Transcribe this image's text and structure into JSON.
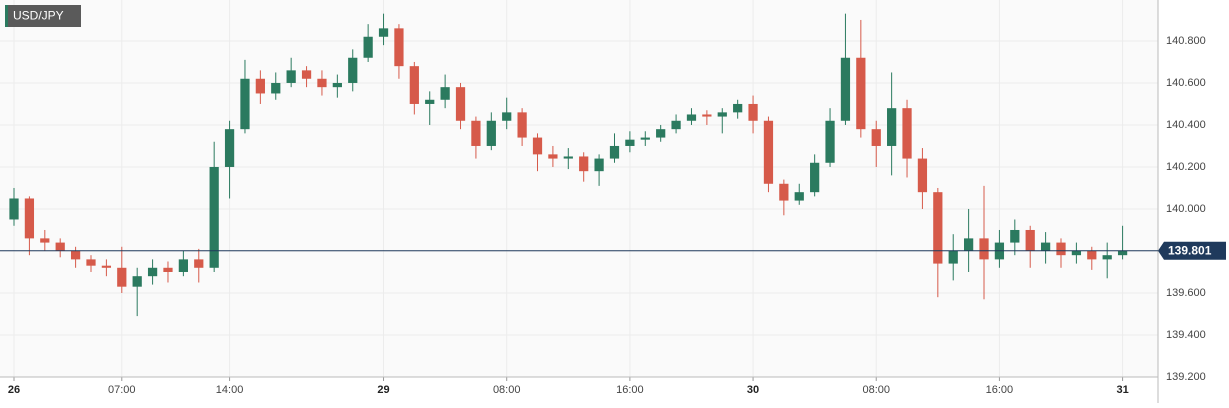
{
  "chart_data": {
    "type": "candlestick",
    "title": "USD/JPY",
    "x": [
      0,
      1,
      2,
      3,
      4,
      5,
      6,
      7,
      8,
      9,
      10,
      11,
      12,
      13,
      14,
      15,
      16,
      17,
      18,
      19,
      20,
      21,
      22,
      23,
      24,
      25,
      26,
      27,
      28,
      29,
      30,
      31,
      32,
      33,
      34,
      35,
      36,
      37,
      38,
      39,
      40,
      41,
      42,
      43,
      44,
      45,
      46,
      47,
      48,
      49,
      50,
      51,
      52,
      53,
      54,
      55,
      56,
      57,
      58,
      59,
      60,
      61,
      62,
      63,
      64,
      65,
      66,
      67,
      68,
      69,
      70,
      71,
      72
    ],
    "open": [
      139.95,
      140.05,
      139.86,
      139.84,
      139.8,
      139.76,
      139.73,
      139.72,
      139.63,
      139.68,
      139.72,
      139.7,
      139.76,
      139.72,
      140.2,
      140.38,
      140.62,
      140.55,
      140.6,
      140.66,
      140.62,
      140.58,
      140.6,
      140.72,
      140.82,
      140.86,
      140.68,
      140.5,
      140.52,
      140.58,
      140.42,
      140.3,
      140.42,
      140.46,
      140.34,
      140.26,
      140.24,
      140.25,
      140.18,
      140.24,
      140.3,
      140.33,
      140.34,
      140.38,
      140.42,
      140.45,
      140.44,
      140.46,
      140.5,
      140.42,
      140.12,
      140.04,
      140.08,
      140.22,
      140.42,
      140.72,
      140.38,
      140.3,
      140.48,
      140.24,
      140.08,
      139.74,
      139.8,
      139.86,
      139.76,
      139.84,
      139.9,
      139.8,
      139.84,
      139.78,
      139.8,
      139.76,
      139.78
    ],
    "high": [
      140.1,
      140.06,
      139.9,
      139.86,
      139.82,
      139.78,
      139.76,
      139.82,
      139.72,
      139.76,
      139.75,
      139.8,
      139.81,
      140.32,
      140.42,
      140.71,
      140.66,
      140.65,
      140.72,
      140.68,
      140.66,
      140.64,
      140.76,
      140.88,
      140.93,
      140.88,
      140.7,
      140.56,
      140.64,
      140.6,
      140.44,
      140.46,
      140.53,
      140.48,
      140.36,
      140.3,
      140.29,
      140.27,
      140.26,
      140.36,
      140.37,
      140.37,
      140.4,
      140.45,
      140.48,
      140.47,
      140.48,
      140.52,
      140.54,
      140.44,
      140.14,
      140.12,
      140.26,
      140.48,
      140.93,
      140.9,
      140.42,
      140.65,
      140.52,
      140.29,
      140.1,
      139.88,
      140.0,
      140.11,
      139.9,
      139.95,
      139.92,
      139.89,
      139.86,
      139.84,
      139.82,
      139.84,
      139.92
    ],
    "low": [
      139.92,
      139.78,
      139.8,
      139.77,
      139.72,
      139.7,
      139.68,
      139.6,
      139.49,
      139.64,
      139.65,
      139.68,
      139.65,
      139.7,
      140.05,
      140.36,
      140.5,
      140.52,
      140.58,
      140.58,
      140.54,
      140.53,
      140.56,
      140.7,
      140.78,
      140.62,
      140.45,
      140.4,
      140.48,
      140.38,
      140.24,
      140.28,
      140.38,
      140.3,
      140.18,
      140.2,
      140.19,
      140.13,
      140.11,
      140.22,
      140.27,
      140.3,
      140.32,
      140.36,
      140.4,
      140.4,
      140.36,
      140.43,
      140.36,
      140.08,
      139.97,
      140.02,
      140.06,
      140.2,
      140.4,
      140.34,
      140.2,
      140.16,
      140.15,
      140.0,
      139.58,
      139.66,
      139.7,
      139.57,
      139.72,
      139.78,
      139.72,
      139.74,
      139.72,
      139.74,
      139.71,
      139.67,
      139.76
    ],
    "close": [
      140.05,
      139.86,
      139.84,
      139.8,
      139.76,
      139.73,
      139.72,
      139.63,
      139.68,
      139.72,
      139.7,
      139.76,
      139.72,
      140.2,
      140.38,
      140.62,
      140.55,
      140.6,
      140.66,
      140.62,
      140.58,
      140.6,
      140.72,
      140.82,
      140.86,
      140.68,
      140.5,
      140.52,
      140.58,
      140.42,
      140.3,
      140.42,
      140.46,
      140.34,
      140.26,
      140.24,
      140.25,
      140.18,
      140.24,
      140.3,
      140.33,
      140.34,
      140.38,
      140.42,
      140.45,
      140.44,
      140.46,
      140.5,
      140.42,
      140.12,
      140.04,
      140.08,
      140.22,
      140.42,
      140.72,
      140.38,
      140.3,
      140.48,
      140.24,
      140.08,
      139.74,
      139.8,
      139.86,
      139.76,
      139.84,
      139.9,
      139.8,
      139.84,
      139.78,
      139.8,
      139.76,
      139.78,
      139.801
    ],
    "last_price": 139.801,
    "up_color": "#2b7a5f",
    "down_color": "#d65a4a",
    "last_color": "#1f3a5c",
    "xlim": [
      -0.91,
      74.3
    ],
    "xticks": [
      {
        "value": 0,
        "label": "26"
      },
      {
        "value": 7,
        "label": "07:00"
      },
      {
        "value": 14,
        "label": "14:00"
      },
      {
        "value": 24,
        "label": "29"
      },
      {
        "value": 32,
        "label": "08:00"
      },
      {
        "value": 40,
        "label": "16:00"
      },
      {
        "value": 48,
        "label": "30"
      },
      {
        "value": 56,
        "label": "08:00"
      },
      {
        "value": 64,
        "label": "16:00"
      },
      {
        "value": 72,
        "label": "31"
      }
    ],
    "ylim": [
      139.2,
      140.995
    ],
    "yticks": [
      {
        "value": 139.2,
        "label": "139.200"
      },
      {
        "value": 139.4,
        "label": "139.400"
      },
      {
        "value": 139.6,
        "label": "139.600"
      },
      {
        "value": 139.8,
        "label": "139.800"
      },
      {
        "value": 140.0,
        "label": "140.000"
      },
      {
        "value": 140.2,
        "label": "140.200"
      },
      {
        "value": 140.4,
        "label": "140.400"
      },
      {
        "value": 140.6,
        "label": "140.600"
      },
      {
        "value": 140.8,
        "label": "140.800"
      }
    ],
    "grid": true
  }
}
